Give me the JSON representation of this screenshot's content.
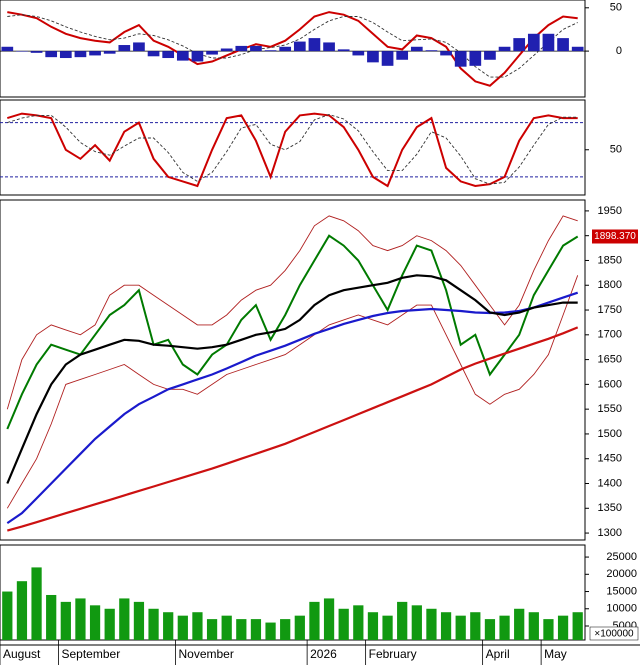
{
  "chart_data": [
    {
      "type": "line",
      "ylim": [
        -53,
        59
      ],
      "yticks": [
        50,
        0
      ],
      "series": [
        {
          "name": "MACD",
          "color": "#cc0000",
          "style": "solid",
          "values": [
            45,
            42,
            38,
            28,
            20,
            15,
            12,
            10,
            22,
            30,
            12,
            5,
            -5,
            -15,
            -12,
            -5,
            2,
            8,
            5,
            12,
            25,
            40,
            45,
            42,
            35,
            20,
            5,
            2,
            18,
            15,
            5,
            -20,
            -35,
            -40,
            -25,
            -5,
            15,
            30,
            40,
            38
          ]
        },
        {
          "name": "Signal",
          "color": "#333333",
          "style": "dashed",
          "values": [
            40,
            42,
            40,
            35,
            28,
            22,
            17,
            13,
            15,
            20,
            18,
            13,
            6,
            -3,
            -8,
            -8,
            -4,
            2,
            4,
            7,
            14,
            25,
            35,
            40,
            40,
            33,
            22,
            12,
            13,
            14,
            10,
            -2,
            -18,
            -30,
            -30,
            -20,
            -5,
            10,
            25,
            33
          ]
        },
        {
          "name": "Histogram",
          "color": "#2020b0",
          "kind": "bar",
          "values": [
            5,
            0,
            -2,
            -7,
            -8,
            -7,
            -5,
            -3,
            7,
            10,
            -6,
            -8,
            -11,
            -12,
            -4,
            3,
            6,
            6,
            1,
            5,
            11,
            15,
            10,
            2,
            -5,
            -13,
            -17,
            -10,
            5,
            1,
            -5,
            -18,
            -17,
            -10,
            5,
            15,
            20,
            20,
            15,
            5
          ]
        }
      ]
    },
    {
      "type": "line",
      "ylim": [
        0,
        105
      ],
      "yticks": [
        50
      ],
      "levels": [
        80,
        20
      ],
      "series": [
        {
          "name": "%K",
          "color": "#cc0000",
          "style": "solid",
          "values": [
            85,
            90,
            88,
            85,
            50,
            40,
            55,
            38,
            70,
            80,
            40,
            20,
            15,
            10,
            50,
            85,
            88,
            60,
            20,
            70,
            88,
            90,
            88,
            75,
            50,
            20,
            10,
            50,
            75,
            85,
            30,
            15,
            10,
            12,
            20,
            60,
            85,
            88,
            85,
            85
          ]
        },
        {
          "name": "%D",
          "color": "#333333",
          "style": "dashed",
          "values": [
            80,
            85,
            88,
            88,
            75,
            58,
            48,
            44,
            54,
            63,
            63,
            47,
            25,
            15,
            25,
            48,
            74,
            78,
            56,
            50,
            59,
            83,
            89,
            84,
            71,
            48,
            27,
            27,
            45,
            70,
            63,
            43,
            18,
            12,
            14,
            31,
            55,
            78,
            86,
            86
          ]
        }
      ]
    },
    {
      "type": "line",
      "ylim": [
        1286,
        1972
      ],
      "yticks": [
        1950,
        1900,
        1850,
        1800,
        1750,
        1700,
        1650,
        1600,
        1550,
        1500,
        1450,
        1400,
        1350,
        1300
      ],
      "last_label": "1898.370",
      "series": [
        {
          "name": "Close",
          "color": "#007a00",
          "style": "solid",
          "values": [
            1510,
            1580,
            1640,
            1680,
            1670,
            1660,
            1700,
            1740,
            1760,
            1790,
            1680,
            1690,
            1640,
            1620,
            1660,
            1680,
            1730,
            1760,
            1690,
            1740,
            1800,
            1850,
            1900,
            1880,
            1850,
            1800,
            1750,
            1820,
            1880,
            1870,
            1790,
            1680,
            1700,
            1620,
            1660,
            1700,
            1780,
            1830,
            1880,
            1898.37
          ]
        },
        {
          "name": "Upper",
          "color": "#b02020",
          "style": "thin",
          "values": [
            1550,
            1650,
            1700,
            1720,
            1710,
            1700,
            1720,
            1780,
            1800,
            1800,
            1780,
            1760,
            1740,
            1720,
            1720,
            1740,
            1770,
            1790,
            1800,
            1830,
            1870,
            1920,
            1940,
            1930,
            1910,
            1880,
            1870,
            1880,
            1900,
            1890,
            1870,
            1840,
            1800,
            1760,
            1720,
            1760,
            1830,
            1890,
            1940,
            1930
          ]
        },
        {
          "name": "Lower",
          "color": "#b02020",
          "style": "thin",
          "values": [
            1350,
            1400,
            1450,
            1520,
            1600,
            1610,
            1620,
            1630,
            1640,
            1620,
            1600,
            1590,
            1590,
            1580,
            1600,
            1620,
            1630,
            1640,
            1650,
            1660,
            1680,
            1700,
            1720,
            1730,
            1740,
            1730,
            1720,
            1740,
            1760,
            1760,
            1700,
            1640,
            1580,
            1560,
            1580,
            1590,
            1620,
            1660,
            1740,
            1820
          ]
        },
        {
          "name": "MA200",
          "color": "#cc1111",
          "style": "thick",
          "values": [
            1305,
            1313,
            1322,
            1331,
            1340,
            1349,
            1358,
            1367,
            1376,
            1385,
            1394,
            1403,
            1412,
            1421,
            1430,
            1440,
            1450,
            1460,
            1470,
            1480,
            1492,
            1504,
            1516,
            1528,
            1540,
            1552,
            1564,
            1576,
            1588,
            1600,
            1615,
            1630,
            1642,
            1652,
            1662,
            1672,
            1682,
            1692,
            1703,
            1715
          ]
        },
        {
          "name": "MA50",
          "color": "#1a1acc",
          "style": "thick",
          "values": [
            1320,
            1340,
            1370,
            1400,
            1430,
            1460,
            1490,
            1515,
            1540,
            1560,
            1575,
            1590,
            1600,
            1610,
            1620,
            1632,
            1645,
            1658,
            1668,
            1678,
            1690,
            1702,
            1712,
            1722,
            1730,
            1738,
            1744,
            1748,
            1750,
            1752,
            1750,
            1748,
            1745,
            1744,
            1745,
            1748,
            1755,
            1765,
            1775,
            1785
          ]
        },
        {
          "name": "MA20",
          "color": "#000000",
          "style": "thick",
          "values": [
            1400,
            1470,
            1540,
            1600,
            1640,
            1660,
            1670,
            1680,
            1690,
            1688,
            1680,
            1678,
            1675,
            1672,
            1675,
            1680,
            1690,
            1700,
            1705,
            1712,
            1730,
            1760,
            1780,
            1790,
            1795,
            1800,
            1805,
            1815,
            1820,
            1818,
            1810,
            1790,
            1770,
            1745,
            1740,
            1745,
            1755,
            1760,
            1765,
            1765
          ]
        }
      ]
    },
    {
      "type": "bar",
      "ylim": [
        940,
        28500
      ],
      "yticks": [
        25000,
        20000,
        15000,
        10000,
        5000
      ],
      "unit_label": "×100000",
      "categories": [
        "August",
        null,
        null,
        null,
        "September",
        null,
        null,
        null,
        null,
        null,
        null,
        null,
        "November",
        null,
        null,
        null,
        null,
        null,
        null,
        null,
        null,
        "2026",
        null,
        null,
        null,
        "February",
        null,
        null,
        null,
        null,
        null,
        null,
        null,
        "April",
        null,
        null,
        null,
        "May",
        null,
        null
      ],
      "series": [
        {
          "name": "Volume",
          "color": "#119911",
          "kind": "bar",
          "values": [
            15000,
            18000,
            22000,
            14000,
            12000,
            13000,
            11000,
            10000,
            13000,
            12000,
            10000,
            9000,
            8000,
            9000,
            7000,
            8000,
            7000,
            7000,
            6000,
            7000,
            8000,
            12000,
            13000,
            10000,
            11000,
            9000,
            8000,
            12000,
            11000,
            10000,
            9000,
            8000,
            9000,
            7000,
            8000,
            10000,
            9000,
            7000,
            8000,
            9000
          ]
        }
      ]
    }
  ]
}
